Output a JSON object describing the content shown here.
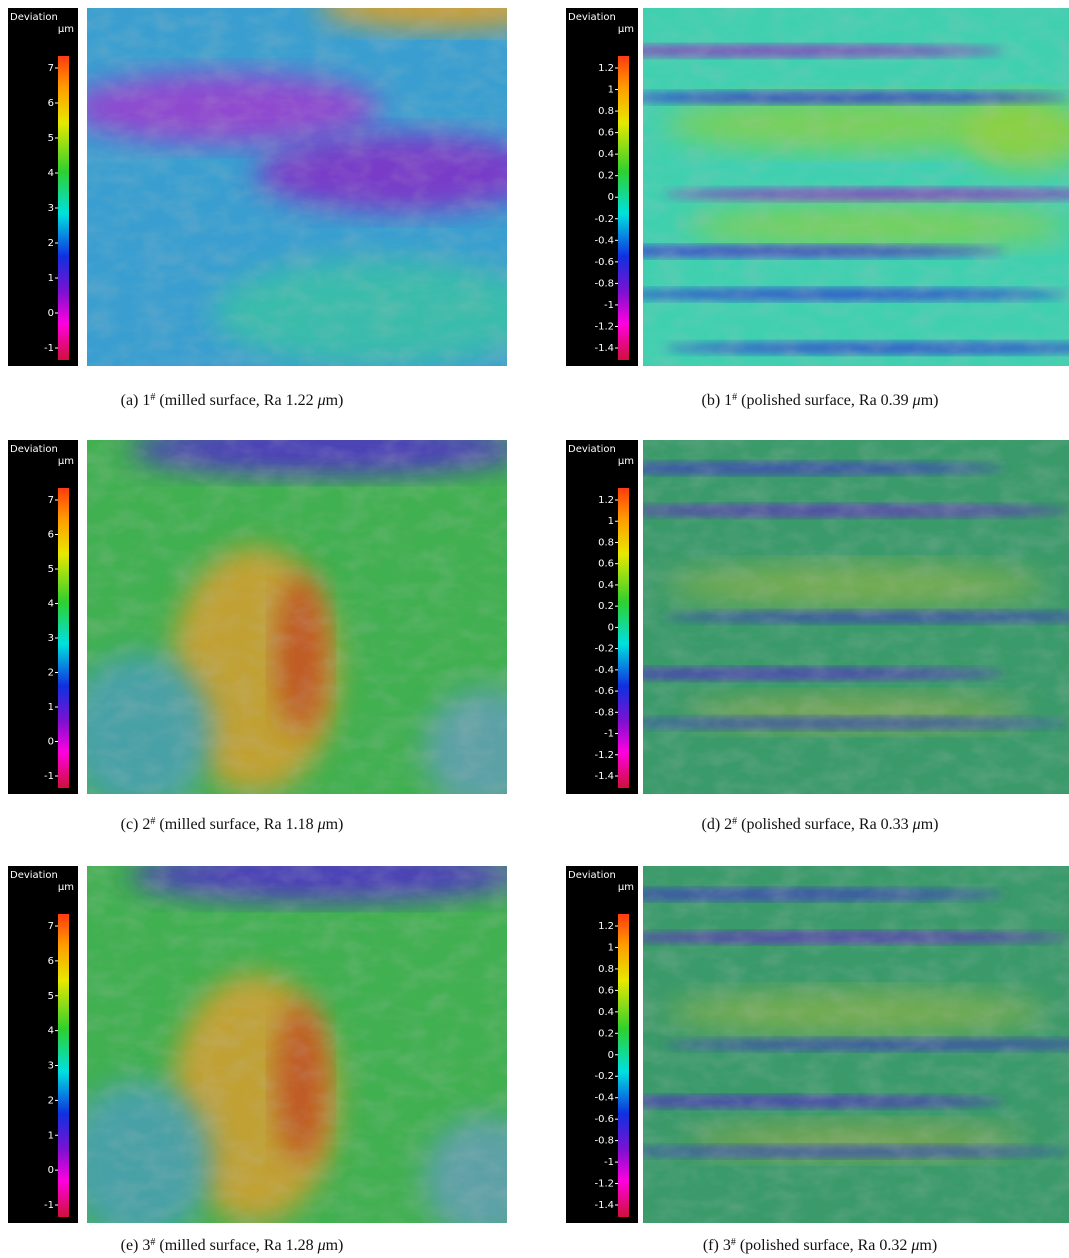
{
  "panels": [
    {
      "colorbar": {
        "title": "Deviation",
        "unit": "µm",
        "ticks": [
          7,
          6,
          5,
          4,
          3,
          2,
          1,
          0,
          -1
        ]
      },
      "caption": {
        "label": "(a) 1",
        "sup": "#",
        "text": " (milled surface, Ra 1.22 ",
        "mu": "μ",
        "end": "m)"
      }
    },
    {
      "colorbar": {
        "title": "Deviation",
        "unit": "µm",
        "ticks": [
          1.2,
          1,
          0.8,
          0.6,
          0.4,
          0.2,
          0,
          -0.2,
          -0.4,
          -0.6,
          -0.8,
          -1,
          -1.2,
          -1.4
        ]
      },
      "caption": {
        "label": "(b) 1",
        "sup": "#",
        "text": " (polished surface, Ra 0.39 ",
        "mu": "μ",
        "end": "m)"
      }
    },
    {
      "colorbar": {
        "title": "Deviation",
        "unit": "µm",
        "ticks": [
          7,
          6,
          5,
          4,
          3,
          2,
          1,
          0,
          -1
        ]
      },
      "caption": {
        "label": "(c) 2",
        "sup": "#",
        "text": " (milled surface, Ra 1.18 ",
        "mu": "μ",
        "end": "m)"
      }
    },
    {
      "colorbar": {
        "title": "Deviation",
        "unit": "µm",
        "ticks": [
          1.2,
          1,
          0.8,
          0.6,
          0.4,
          0.2,
          0,
          -0.2,
          -0.4,
          -0.6,
          -0.8,
          -1,
          -1.2,
          -1.4
        ]
      },
      "caption": {
        "label": "(d) 2",
        "sup": "#",
        "text": " (polished surface, Ra 0.33 ",
        "mu": "μ",
        "end": "m)"
      }
    },
    {
      "colorbar": {
        "title": "Deviation",
        "unit": "µm",
        "ticks": [
          7,
          6,
          5,
          4,
          3,
          2,
          1,
          0,
          -1
        ]
      },
      "caption": {
        "label": "(e) 3",
        "sup": "#",
        "text": " (milled surface, Ra 1.28 ",
        "mu": "μ",
        "end": "m)"
      }
    },
    {
      "colorbar": {
        "title": "Deviation",
        "unit": "µm",
        "ticks": [
          1.2,
          1,
          0.8,
          0.6,
          0.4,
          0.2,
          0,
          -0.2,
          -0.4,
          -0.6,
          -0.8,
          -1,
          -1.2,
          -1.4
        ]
      },
      "caption": {
        "label": "(f) 3",
        "sup": "#",
        "text": " (polished surface, Ra 0.32 ",
        "mu": "μ",
        "end": "m)"
      }
    }
  ]
}
